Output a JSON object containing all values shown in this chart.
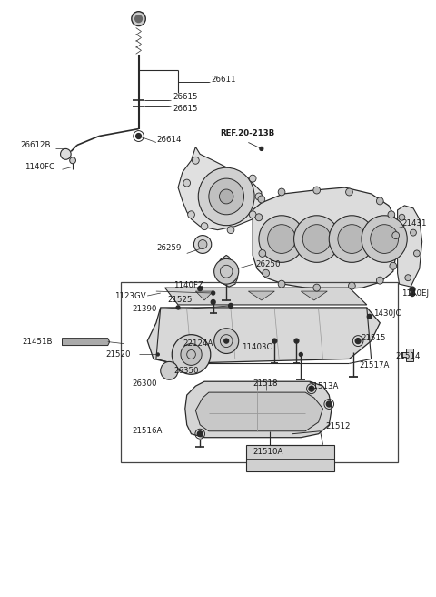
{
  "bg_color": "#ffffff",
  "line_color": "#2a2a2a",
  "text_color": "#1a1a1a",
  "fig_width": 4.8,
  "fig_height": 6.56,
  "dpi": 100,
  "xlim": [
    0,
    480
  ],
  "ylim": [
    0,
    656
  ]
}
